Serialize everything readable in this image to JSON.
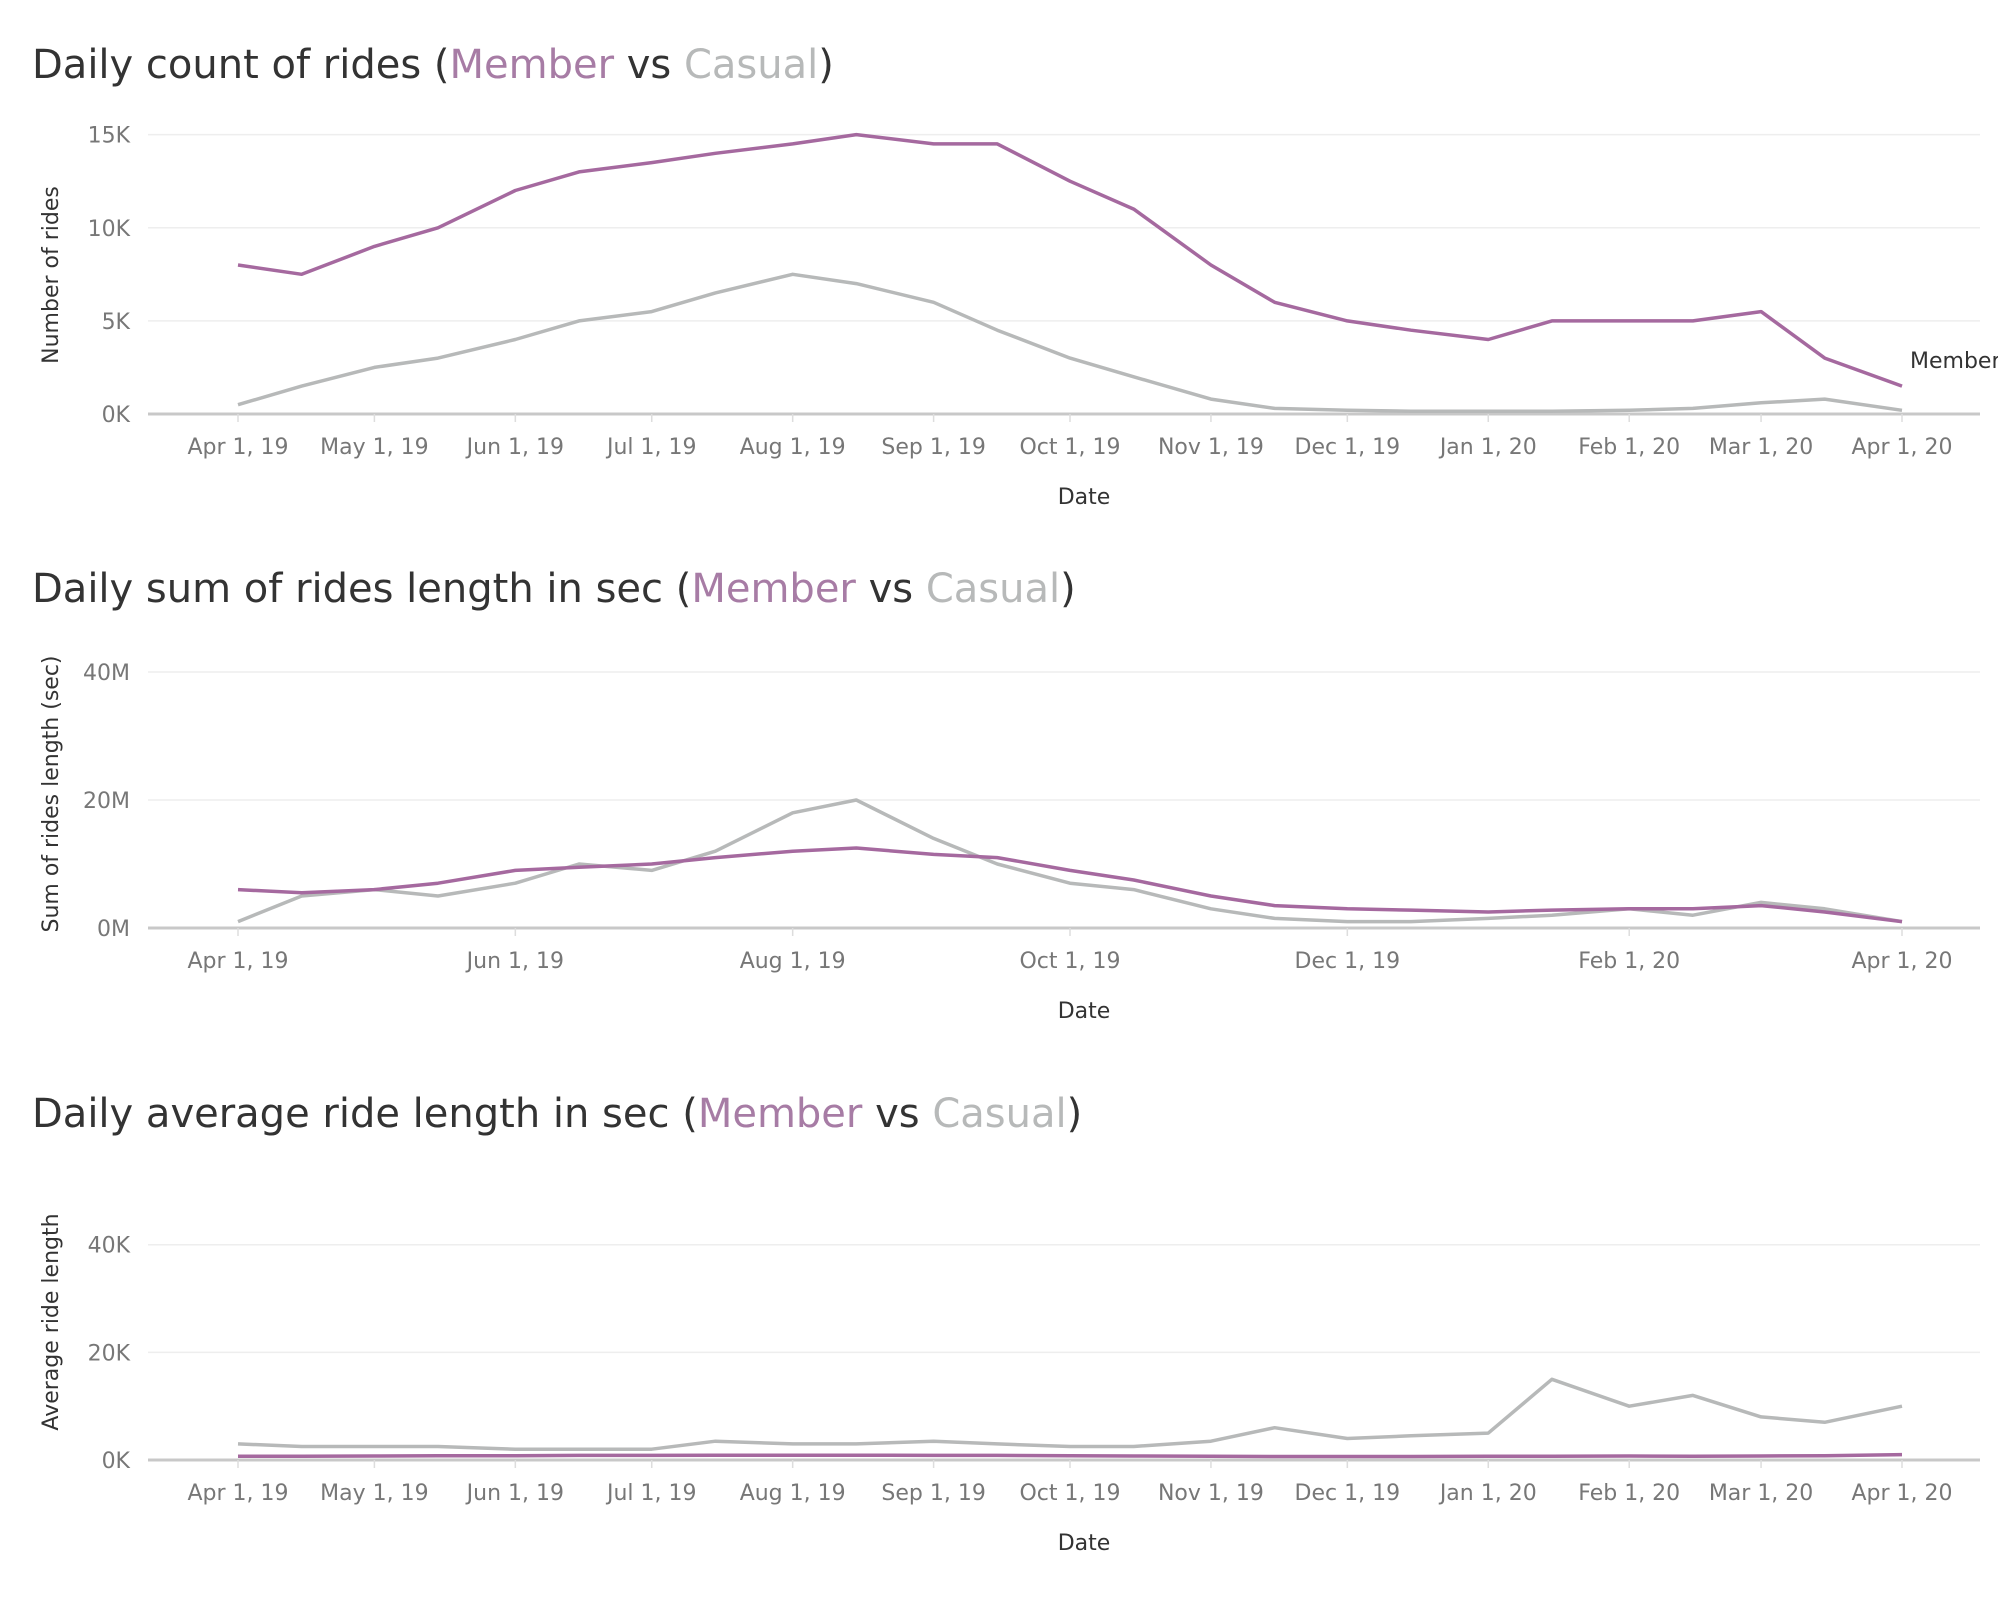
{
  "colors": {
    "member": "#a5699f",
    "casual": "#b7b9b9",
    "title": "#333333",
    "tick": "#777777"
  },
  "charts": [
    {
      "title_parts": [
        "Daily count of rides (",
        "Member",
        " vs ",
        "Casual",
        ")"
      ],
      "ylabel": "Number of rides",
      "xlabel": "Date",
      "yticks": [
        "0K",
        "5K",
        "10K",
        "15K"
      ],
      "xticks": [
        "Apr 1, 19",
        "May 1, 19",
        "Jun 1, 19",
        "Jul 1, 19",
        "Aug 1, 19",
        "Sep 1, 19",
        "Oct 1, 19",
        "Nov 1, 19",
        "Dec 1, 19",
        "Jan 1, 20",
        "Feb 1, 20",
        "Mar 1, 20",
        "Apr 1, 20"
      ],
      "end_label": "Member"
    },
    {
      "title_parts": [
        "Daily sum of rides length in sec (",
        "Member",
        " vs ",
        "Casual",
        ")"
      ],
      "ylabel": "Sum of  rides length (sec)",
      "xlabel": "Date",
      "yticks": [
        "0M",
        "20M",
        "40M"
      ],
      "xticks": [
        "Apr 1, 19",
        "Jun 1, 19",
        "Aug 1, 19",
        "Oct 1, 19",
        "Dec 1, 19",
        "Feb 1, 20",
        "Apr 1, 20"
      ]
    },
    {
      "title_parts": [
        "Daily average ride length in sec (",
        "Member",
        " vs ",
        "Casual",
        ")"
      ],
      "ylabel": "Average ride length",
      "xlabel": "Date",
      "yticks": [
        "0K",
        "20K",
        "40K"
      ],
      "xticks": [
        "Apr 1, 19",
        "May 1, 19",
        "Jun 1, 19",
        "Jul 1, 19",
        "Aug 1, 19",
        "Sep 1, 19",
        "Oct 1, 19",
        "Nov 1, 19",
        "Dec 1, 19",
        "Jan 1, 20",
        "Feb 1, 20",
        "Mar 1, 20",
        "Apr 1, 20"
      ]
    }
  ],
  "chart_data": [
    {
      "type": "line",
      "title": "Daily count of rides (Member vs Casual)",
      "xlabel": "Date",
      "ylabel": "Number of rides",
      "xlim": [
        "2019-04-01",
        "2020-04-01"
      ],
      "ylim": [
        0,
        16000
      ],
      "grid": true,
      "x": [
        "2019-04-01",
        "2019-04-15",
        "2019-05-01",
        "2019-05-15",
        "2019-06-01",
        "2019-06-15",
        "2019-07-01",
        "2019-07-15",
        "2019-08-01",
        "2019-08-15",
        "2019-09-01",
        "2019-09-15",
        "2019-10-01",
        "2019-10-15",
        "2019-11-01",
        "2019-11-15",
        "2019-12-01",
        "2019-12-15",
        "2020-01-01",
        "2020-01-15",
        "2020-02-01",
        "2020-02-15",
        "2020-03-01",
        "2020-03-15",
        "2020-04-01"
      ],
      "series": [
        {
          "name": "Member",
          "values": [
            8000,
            7500,
            9000,
            10000,
            12000,
            13000,
            13500,
            14000,
            14500,
            15000,
            14500,
            14500,
            12500,
            11000,
            8000,
            6000,
            5000,
            4500,
            4000,
            5000,
            5000,
            5000,
            5500,
            3000,
            1500
          ]
        },
        {
          "name": "Casual",
          "values": [
            500,
            1500,
            2500,
            3000,
            4000,
            5000,
            5500,
            6500,
            7500,
            7000,
            6000,
            4500,
            3000,
            2000,
            800,
            300,
            200,
            150,
            150,
            150,
            200,
            300,
            600,
            800,
            200
          ]
        }
      ]
    },
    {
      "type": "line",
      "title": "Daily sum of rides length in sec (Member vs Casual)",
      "xlabel": "Date",
      "ylabel": "Sum of  rides length (sec)",
      "xlim": [
        "2019-04-01",
        "2020-04-01"
      ],
      "ylim": [
        0,
        45000000
      ],
      "grid": true,
      "x": [
        "2019-04-01",
        "2019-04-15",
        "2019-05-01",
        "2019-05-15",
        "2019-06-01",
        "2019-06-15",
        "2019-07-01",
        "2019-07-15",
        "2019-08-01",
        "2019-08-15",
        "2019-09-01",
        "2019-09-15",
        "2019-10-01",
        "2019-10-15",
        "2019-11-01",
        "2019-11-15",
        "2019-12-01",
        "2019-12-15",
        "2020-01-01",
        "2020-01-15",
        "2020-02-01",
        "2020-02-15",
        "2020-03-01",
        "2020-03-15",
        "2020-04-01"
      ],
      "series": [
        {
          "name": "Member",
          "values": [
            6000000,
            5500000,
            6000000,
            7000000,
            9000000,
            9500000,
            10000000,
            11000000,
            12000000,
            12500000,
            11500000,
            11000000,
            9000000,
            7500000,
            5000000,
            3500000,
            3000000,
            2800000,
            2500000,
            2800000,
            3000000,
            3000000,
            3500000,
            2500000,
            1000000
          ]
        },
        {
          "name": "Casual",
          "values": [
            1000000,
            5000000,
            6000000,
            5000000,
            7000000,
            10000000,
            9000000,
            12000000,
            18000000,
            20000000,
            14000000,
            10000000,
            7000000,
            6000000,
            3000000,
            1500000,
            1000000,
            1000000,
            1500000,
            2000000,
            3000000,
            2000000,
            4000000,
            3000000,
            1000000
          ]
        }
      ]
    },
    {
      "type": "line",
      "title": "Daily average ride length in sec (Member vs Casual)",
      "xlabel": "Date",
      "ylabel": "Average ride length",
      "xlim": [
        "2019-04-01",
        "2020-04-01"
      ],
      "ylim": [
        0,
        55000
      ],
      "grid": true,
      "x": [
        "2019-04-01",
        "2019-04-15",
        "2019-05-01",
        "2019-05-15",
        "2019-06-01",
        "2019-06-15",
        "2019-07-01",
        "2019-07-15",
        "2019-08-01",
        "2019-08-15",
        "2019-09-01",
        "2019-09-15",
        "2019-10-01",
        "2019-10-15",
        "2019-11-01",
        "2019-11-15",
        "2019-12-01",
        "2019-12-15",
        "2020-01-01",
        "2020-01-15",
        "2020-02-01",
        "2020-02-15",
        "2020-03-01",
        "2020-03-15",
        "2020-04-01"
      ],
      "series": [
        {
          "name": "Member",
          "values": [
            700,
            700,
            750,
            800,
            800,
            850,
            850,
            900,
            900,
            900,
            850,
            850,
            800,
            750,
            700,
            650,
            650,
            650,
            700,
            700,
            750,
            700,
            750,
            800,
            1000
          ]
        },
        {
          "name": "Casual",
          "values": [
            3000,
            2500,
            2500,
            2500,
            2000,
            2000,
            2000,
            3500,
            3000,
            3000,
            3500,
            3000,
            2500,
            2500,
            3500,
            6000,
            4000,
            4500,
            5000,
            15000,
            10000,
            12000,
            8000,
            7000,
            10000
          ]
        }
      ]
    }
  ]
}
